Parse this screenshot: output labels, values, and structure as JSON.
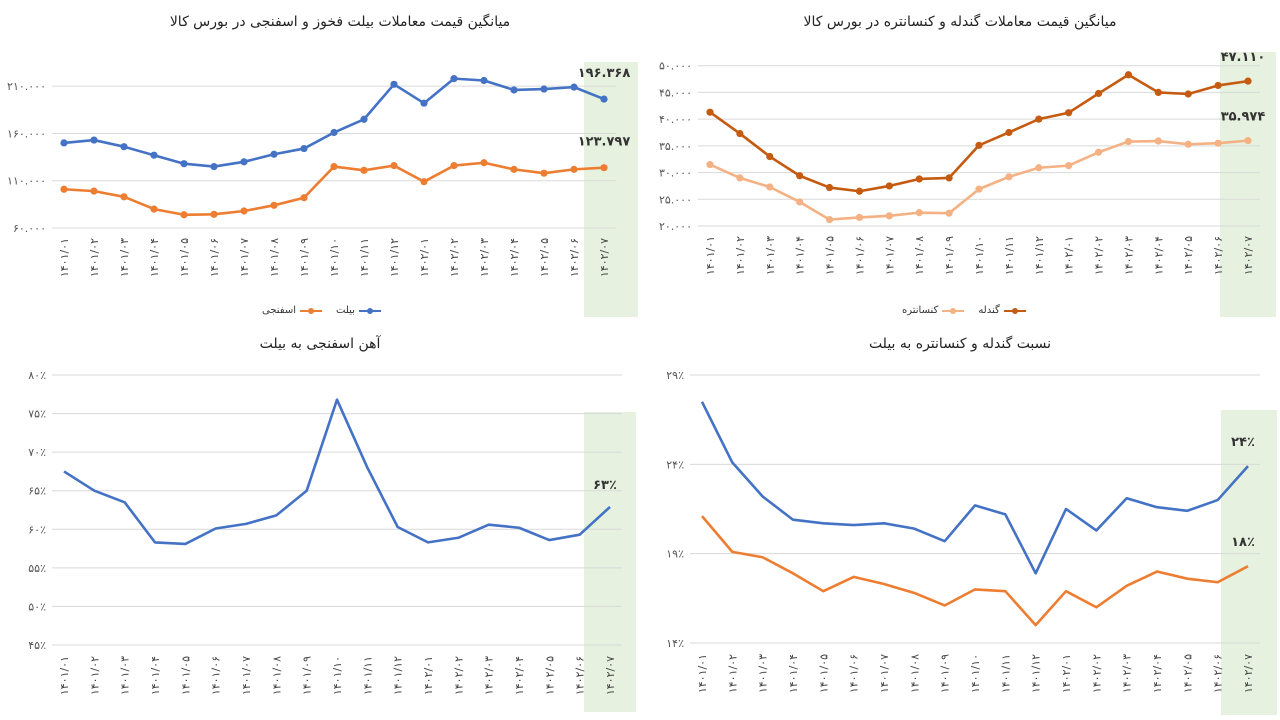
{
  "charts": [
    {
      "id": "c1",
      "title": "میانگین قیمت معاملات بیلت فخوز و اسفنجی در بورس کالا",
      "type": "line",
      "categories": [
        "۱۴۰۱/۰۱",
        "۱۴۰۱/۰۲",
        "۱۴۰۱/۰۳",
        "۱۴۰۱/۰۴",
        "۱۴۰۱/۰۵",
        "۱۴۰۱/۰۶",
        "۱۴۰۱/۰۷",
        "۱۴۰۱/۰۸",
        "۱۴۰۱/۰۹",
        "۱۴۰۱/۱۰",
        "۱۴۰۱/۱۱",
        "۱۴۰۱/۱۲",
        "۱۴۰۲/۰۱",
        "۱۴۰۲/۰۲",
        "۱۴۰۲/۰۳",
        "۱۴۰۲/۰۴",
        "۱۴۰۲/۰۵",
        "۱۴۰۲/۰۶",
        "۱۴۰۲/۰۷"
      ],
      "yticks": [
        60000,
        110000,
        160000,
        210000
      ],
      "ytick_labels": [
        "۶۰.۰۰۰",
        "۱۱۰.۰۰۰",
        "۱۶۰.۰۰۰",
        "۲۱۰.۰۰۰"
      ],
      "ylim": [
        60000,
        225000
      ],
      "series": [
        {
          "name": "بیلت",
          "color": "#4472C4",
          "values": [
            150000,
            153000,
            146000,
            137000,
            128000,
            125000,
            130000,
            138000,
            144000,
            161000,
            175000,
            212000,
            192000,
            218000,
            216000,
            206000,
            207000,
            209000,
            196368
          ],
          "end_label": "۱۹۶.۳۶۸"
        },
        {
          "name": "اسفنجی",
          "color": "#ED7D31",
          "values": [
            101000,
            99000,
            93000,
            80000,
            74000,
            74500,
            78000,
            84000,
            92000,
            125000,
            121000,
            126000,
            109000,
            126000,
            129000,
            122000,
            118000,
            122000,
            123797
          ],
          "end_label": "۱۲۳.۷۹۷"
        }
      ],
      "legend_position": "bottom-center",
      "highlight_last": true
    },
    {
      "id": "c2",
      "title": "میانگین قیمت معاملات گندله و کنسانتره در بورس کالا",
      "type": "line",
      "categories": [
        "۱۴۰۱/۰۱",
        "۱۴۰۱/۰۲",
        "۱۴۰۱/۰۳",
        "۱۴۰۱/۰۴",
        "۱۴۰۱/۰۵",
        "۱۴۰۱/۰۶",
        "۱۴۰۱/۰۷",
        "۱۴۰۱/۰۸",
        "۱۴۰۱/۰۹",
        "۱۴۰۱/۱۰",
        "۱۴۰۱/۱۱",
        "۱۴۰۱/۱۲",
        "۱۴۰۲/۰۱",
        "۱۴۰۲/۰۲",
        "۱۴۰۲/۰۳",
        "۱۴۰۲/۰۴",
        "۱۴۰۲/۰۵",
        "۱۴۰۲/۰۶",
        "۱۴۰۲/۰۷"
      ],
      "yticks": [
        20000,
        25000,
        30000,
        35000,
        40000,
        45000,
        50000
      ],
      "ytick_labels": [
        "۲۰.۰۰۰",
        "۲۵.۰۰۰",
        "۳۰.۰۰۰",
        "۳۵.۰۰۰",
        "۴۰.۰۰۰",
        "۴۵.۰۰۰",
        "۵۰.۰۰۰"
      ],
      "ylim": [
        20000,
        52000
      ],
      "series": [
        {
          "name": "گندله",
          "color": "#C55A11",
          "values": [
            41300,
            37300,
            33000,
            29400,
            27200,
            26500,
            27500,
            28800,
            29000,
            35100,
            37500,
            40000,
            41200,
            44800,
            48300,
            45000,
            44700,
            46300,
            47110
          ],
          "end_label": "۴۷.۱۱۰"
        },
        {
          "name": "کنسانتره",
          "color": "#F4B183",
          "values": [
            31500,
            29000,
            27300,
            24500,
            21200,
            21600,
            21900,
            22500,
            22400,
            26900,
            29200,
            30900,
            31300,
            33800,
            35800,
            35900,
            35300,
            35500,
            35974
          ],
          "end_label": "۳۵.۹۷۴"
        }
      ],
      "legend_position": "bottom-center",
      "highlight_last": true
    },
    {
      "id": "c3",
      "title": "آهن اسفنجی به بیلت",
      "type": "line",
      "categories": [
        "۱۴۰۱/۰۱",
        "۱۴۰۱/۰۲",
        "۱۴۰۱/۰۳",
        "۱۴۰۱/۰۴",
        "۱۴۰۱/۰۵",
        "۱۴۰۱/۰۶",
        "۱۴۰۱/۰۷",
        "۱۴۰۱/۰۸",
        "۱۴۰۱/۰۹",
        "۱۴۰۱/۱۰",
        "۱۴۰۱/۱۱",
        "۱۴۰۱/۱۲",
        "۱۴۰۲/۰۱",
        "۱۴۰۲/۰۲",
        "۱۴۰۲/۰۳",
        "۱۴۰۲/۰۴",
        "۱۴۰۲/۰۵",
        "۱۴۰۲/۰۶",
        "۱۴۰۲/۰۷"
      ],
      "yticks": [
        45,
        50,
        55,
        60,
        65,
        70,
        75,
        80
      ],
      "ytick_labels": [
        "۴۵٪",
        "۵۰٪",
        "۵۵٪",
        "۶۰٪",
        "۶۵٪",
        "۷۰٪",
        "۷۵٪",
        "۸۰٪"
      ],
      "ylim": [
        45,
        80
      ],
      "series": [
        {
          "name": "",
          "color": "#4472C4",
          "values": [
            67.5,
            65,
            63.5,
            58.3,
            58.1,
            60.1,
            60.7,
            61.8,
            65,
            76.8,
            68,
            60.3,
            58.3,
            58.9,
            60.6,
            60.2,
            58.6,
            59.3,
            62.9
          ],
          "end_label": "۶۳٪"
        }
      ],
      "legend_position": "none",
      "highlight_last": true
    },
    {
      "id": "c4",
      "title": "نسبت گندله و کنسانتره به بیلت",
      "type": "line",
      "categories": [
        "۱۴۰۱/۰۱",
        "۱۴۰۱/۰۲",
        "۱۴۰۱/۰۳",
        "۱۴۰۱/۰۴",
        "۱۴۰۱/۰۵",
        "۱۴۰۱/۰۶",
        "۱۴۰۱/۰۷",
        "۱۴۰۱/۰۸",
        "۱۴۰۱/۰۹",
        "۱۴۰۱/۱۰",
        "۱۴۰۱/۱۱",
        "۱۴۰۱/۱۲",
        "۱۴۰۲/۰۱",
        "۱۴۰۲/۰۲",
        "۱۴۰۲/۰۳",
        "۱۴۰۲/۰۴",
        "۱۴۰۲/۰۵",
        "۱۴۰۲/۰۶",
        "۱۴۰۲/۰۷"
      ],
      "yticks": [
        14,
        19,
        24,
        29
      ],
      "ytick_labels": [
        "۱۴٪",
        "۱۹٪",
        "۲۴٪",
        "۲۹٪"
      ],
      "ylim": [
        14,
        29
      ],
      "series": [
        {
          "name": "",
          "color": "#4472C4",
          "values": [
            27.5,
            24.1,
            22.2,
            20.9,
            20.7,
            20.6,
            20.7,
            20.4,
            19.7,
            21.7,
            21.2,
            17.9,
            21.5,
            20.3,
            22.1,
            21.6,
            21.4,
            22.0,
            23.9
          ],
          "end_label": "۲۴٪"
        },
        {
          "name": "",
          "color": "#ED7D31",
          "values": [
            21.1,
            19.1,
            18.8,
            17.9,
            16.9,
            17.7,
            17.3,
            16.8,
            16.1,
            17.0,
            16.9,
            15.0,
            16.9,
            16.0,
            17.2,
            18.0,
            17.6,
            17.4,
            18.3
          ],
          "end_label": "۱۸٪"
        }
      ],
      "legend_position": "none",
      "highlight_last": true
    }
  ]
}
